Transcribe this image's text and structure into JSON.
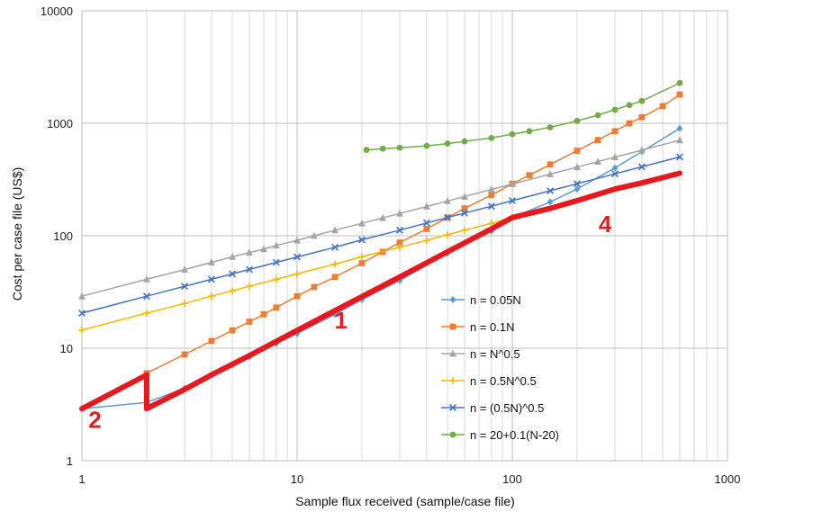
{
  "chart_data": {
    "type": "line",
    "title": "",
    "xlabel": "Sample flux received (sample/case file)",
    "ylabel": "Cost per case file (US$)",
    "xscale": "log",
    "yscale": "log",
    "xlim": [
      1,
      1000
    ],
    "ylim": [
      1,
      10000
    ],
    "grid": true,
    "legend_position": "bottom-right",
    "x_tick_labels": [
      "1",
      "10",
      "100",
      "1000"
    ],
    "y_tick_labels": [
      "1",
      "10",
      "100",
      "1000",
      "10000"
    ],
    "series": [
      {
        "name": "n = 0.05N",
        "color": "#5b9bd5",
        "marker": "diamond",
        "x": [
          1,
          2,
          3,
          4,
          5,
          6,
          8,
          10,
          15,
          20,
          30,
          50,
          80,
          100,
          150,
          200,
          300,
          400,
          600
        ],
        "y": [
          2.9,
          3.3,
          4.4,
          5.8,
          7.1,
          8.4,
          11,
          13.5,
          20,
          27,
          40,
          70,
          110,
          145,
          200,
          260,
          400,
          560,
          900
        ]
      },
      {
        "name": "n = 0.1N",
        "color": "#ed7d31",
        "marker": "square",
        "x": [
          2,
          3,
          4,
          5,
          6,
          7,
          8,
          10,
          12,
          15,
          20,
          25,
          30,
          40,
          50,
          60,
          80,
          100,
          120,
          150,
          200,
          250,
          300,
          350,
          400,
          500,
          600
        ],
        "y": [
          6,
          8.8,
          11.6,
          14.4,
          17.2,
          20,
          23,
          29,
          35,
          43,
          57,
          72,
          87,
          115,
          145,
          175,
          230,
          290,
          345,
          430,
          570,
          710,
          850,
          1000,
          1130,
          1420,
          1800
        ]
      },
      {
        "name": "n = N^0.5",
        "color": "#a5a5a5",
        "marker": "triangle",
        "x": [
          1,
          2,
          3,
          4,
          5,
          6,
          7,
          8,
          10,
          12,
          15,
          20,
          25,
          30,
          40,
          50,
          60,
          80,
          100,
          150,
          200,
          250,
          300,
          400,
          600
        ],
        "y": [
          29,
          41,
          50,
          58,
          65,
          71,
          76,
          82,
          91,
          100,
          112,
          129,
          144,
          158,
          182,
          204,
          223,
          258,
          288,
          353,
          408,
          456,
          500,
          577,
          707
        ]
      },
      {
        "name": "n = 0.5N^0.5",
        "color": "#f5b800",
        "marker": "plus",
        "x": [
          1,
          2,
          3,
          4,
          5,
          6,
          8,
          10,
          15,
          20,
          30,
          40,
          50,
          60,
          80,
          100
        ],
        "y": [
          14.5,
          20.5,
          25,
          29,
          32.4,
          35.5,
          41,
          45.8,
          56,
          65,
          79,
          91,
          102,
          112,
          129,
          145
        ]
      },
      {
        "name": "n = (0.5N)^0.5",
        "color": "#4472c4",
        "marker": "x",
        "x": [
          1,
          2,
          3,
          4,
          5,
          6,
          8,
          10,
          15,
          20,
          30,
          40,
          50,
          60,
          80,
          100,
          150,
          200,
          300,
          400,
          600
        ],
        "y": [
          20.5,
          29,
          35.5,
          41,
          45.8,
          50.2,
          58,
          64.8,
          79,
          92,
          112,
          130,
          145,
          159,
          183,
          205,
          251,
          290,
          355,
          410,
          502
        ]
      },
      {
        "name": "n = 20+0.1(N-20)",
        "color": "#70ad47",
        "marker": "circle",
        "x": [
          21,
          25,
          30,
          40,
          50,
          60,
          80,
          100,
          120,
          150,
          200,
          250,
          300,
          350,
          400,
          600
        ],
        "y": [
          580,
          595,
          605,
          630,
          660,
          690,
          740,
          800,
          850,
          920,
          1050,
          1180,
          1320,
          1450,
          1580,
          2280
        ]
      },
      {
        "name": "optimal cost",
        "color": "#e8191e",
        "marker": "none",
        "legend": false,
        "x": [
          1,
          2,
          2,
          3,
          4,
          5,
          6,
          8,
          10,
          15,
          20,
          30,
          50,
          80,
          100,
          150,
          200,
          300,
          400,
          600
        ],
        "y": [
          2.9,
          5.8,
          2.9,
          4.3,
          5.8,
          7.2,
          8.6,
          11.5,
          14.4,
          21.6,
          28.8,
          43,
          72,
          115,
          145,
          175,
          205,
          260,
          295,
          360
        ]
      }
    ],
    "annotations": [
      {
        "text": "1",
        "x": 16,
        "y": 15
      },
      {
        "text": "2",
        "x": 1.15,
        "y": 1.95
      },
      {
        "text": "4",
        "x": 270,
        "y": 108
      }
    ]
  }
}
